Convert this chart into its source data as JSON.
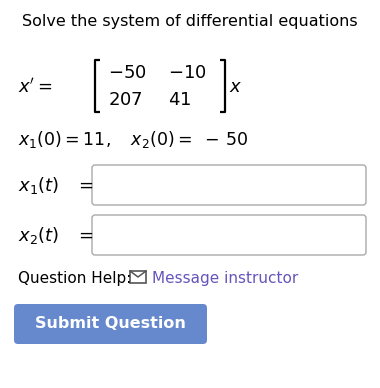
{
  "title": "Solve the system of differential equations",
  "title_fontsize": 11.5,
  "bg_color": "#ffffff",
  "text_color": "#000000",
  "link_color": "#6655bb",
  "button_color": "#6688cc",
  "button_text_color": "#ffffff",
  "input_box_border": "#aaaaaa",
  "envelope_color": "#555555",
  "question_help_text": "Question Help:",
  "message_text": "Message instructor",
  "submit_text": "Submit Question",
  "fig_w": 3.8,
  "fig_h": 3.88,
  "dpi": 100
}
